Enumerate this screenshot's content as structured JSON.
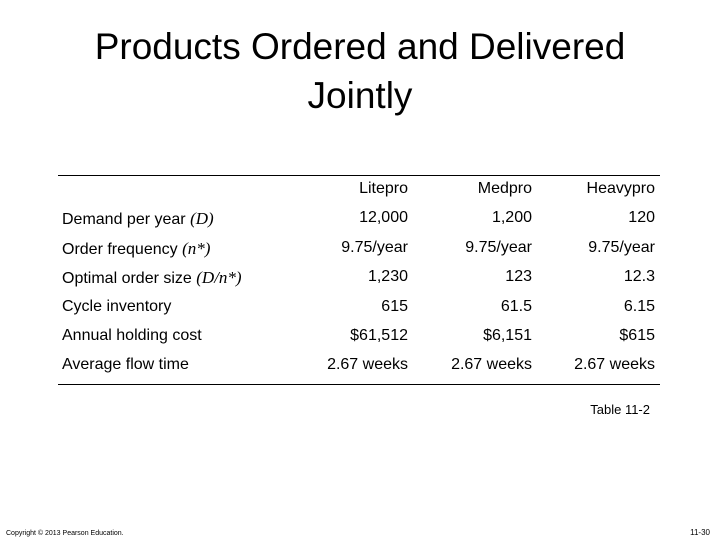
{
  "title": "Products Ordered and Delivered Jointly",
  "table": {
    "columns": [
      "Litepro",
      "Medpro",
      "Heavypro"
    ],
    "rows": [
      {
        "label": "Demand per year ",
        "symbol": "(D)",
        "cells": [
          "12,000",
          "1,200",
          "120"
        ]
      },
      {
        "label": "Order frequency ",
        "symbol": "(n*)",
        "cells": [
          "9.75/year",
          "9.75/year",
          "9.75/year"
        ]
      },
      {
        "label": "Optimal order size ",
        "symbol": "(D/n*)",
        "cells": [
          "1,230",
          "123",
          "12.3"
        ]
      },
      {
        "label": "Cycle inventory",
        "cells": [
          "615",
          "61.5",
          "6.15"
        ]
      },
      {
        "label": "Annual holding cost",
        "cells": [
          "$61,512",
          "$6,151",
          "$615"
        ]
      },
      {
        "label": "Average flow time",
        "cells": [
          "2.67 weeks",
          "2.67 weeks",
          "2.67 weeks"
        ]
      }
    ],
    "caption": "Table 11-2"
  },
  "footer": {
    "copyright": "Copyright © 2013 Pearson Education.",
    "page": "11-30"
  }
}
